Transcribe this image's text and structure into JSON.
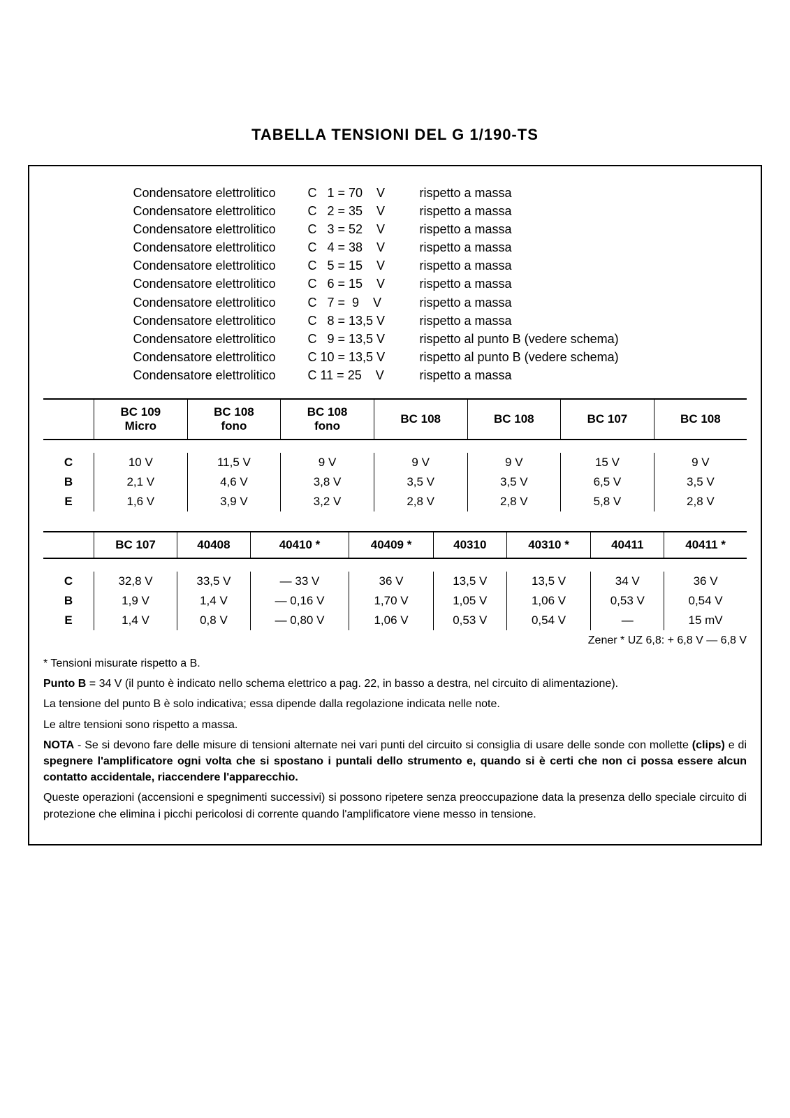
{
  "title": "TABELLA  TENSIONI  DEL  G 1/190-TS",
  "capacitors": [
    {
      "label": "Condensatore  elettrolitico",
      "eq": "C   1 = 70    V",
      "note": "rispetto  a  massa"
    },
    {
      "label": "Condensatore  elettrolitico",
      "eq": "C   2 = 35    V",
      "note": "rispetto  a  massa"
    },
    {
      "label": "Condensatore  elettrolitico",
      "eq": "C   3 = 52    V",
      "note": "rispetto  a  massa"
    },
    {
      "label": "Condensatore  elettrolitico",
      "eq": "C   4 = 38    V",
      "note": "rispetto  a  massa"
    },
    {
      "label": "Condensatore  elettrolitico",
      "eq": "C   5 = 15    V",
      "note": "rispetto  a  massa"
    },
    {
      "label": "Condensatore  elettrolitico",
      "eq": "C   6 = 15    V",
      "note": "rispetto  a  massa"
    },
    {
      "label": "Condensatore  elettrolitico",
      "eq": "C   7 =  9    V",
      "note": "rispetto  a  massa"
    },
    {
      "label": "Condensatore  elettrolitico",
      "eq": "C   8 = 13,5 V",
      "note": "rispetto  a  massa"
    },
    {
      "label": "Condensatore  elettrolitico",
      "eq": "C   9 = 13,5 V",
      "note": "rispetto  al  punto  B (vedere schema)"
    },
    {
      "label": "Condensatore  elettrolitico",
      "eq": "C 10 = 13,5 V",
      "note": "rispetto  al  punto  B (vedere schema)"
    },
    {
      "label": "Condensatore  elettrolitico",
      "eq": "C 11 = 25    V",
      "note": "rispetto  a  massa"
    }
  ],
  "table1": {
    "headers": [
      "",
      "BC 109\nMicro",
      "BC 108\nfono",
      "BC 108\nfono",
      "BC 108",
      "BC 108",
      "BC 107",
      "BC 108"
    ],
    "rows": [
      [
        "C",
        "10    V",
        "11,5 V",
        "9    V",
        "9   V",
        "9   V",
        "15    V",
        "9    V"
      ],
      [
        "B",
        "2,1 V",
        "4,6 V",
        "3,8 V",
        "3,5 V",
        "3,5 V",
        "6,5 V",
        "3,5 V"
      ],
      [
        "E",
        "1,6 V",
        "3,9 V",
        "3,2 V",
        "2,8 V",
        "2,8 V",
        "5,8 V",
        "2,8 V"
      ]
    ]
  },
  "table2": {
    "headers": [
      "",
      "BC 107",
      "40408",
      "40410 *",
      "40409 *",
      "40310",
      "40310 *",
      "40411",
      "40411 *"
    ],
    "rows": [
      [
        "C",
        "32,8 V",
        "33,5 V",
        "— 33      V",
        "36     V",
        "13,5 V",
        "13,5   V",
        "34     V",
        "36     V"
      ],
      [
        "B",
        "1,9 V",
        "1,4 V",
        "—  0,16 V",
        "1,70 V",
        "1,05 V",
        "1,06 V",
        "0,53 V",
        "0,54 V"
      ],
      [
        "E",
        "1,4 V",
        "0,8 V",
        "—  0,80 V",
        "1,06 V",
        "0,53 V",
        "0,54 V",
        "—",
        "15   mV"
      ]
    ]
  },
  "zener": "Zener *  UZ 6,8:  + 6,8 V  — 6,8 V",
  "footnotes": {
    "f1": "*  Tensioni misurate rispetto a B.",
    "f2_a": "Punto  B",
    "f2_b": " = 34 V  (il  punto  è  indicato  nello  schema  elettrico  a  pag.  22,  in  basso  a  destra,  nel  circuito  di alimentazione).",
    "f3": "La tensione del punto B è solo indicativa; essa dipende dalla regolazione indicata nelle note.",
    "f4": "Le altre tensioni sono rispetto a massa.",
    "f5_a": "NOTA",
    "f5_b": " - Se si devono fare delle misure di tensioni alternate nei vari punti del circuito si consiglia di usare delle sonde con mollette ",
    "f5_c": "(clips)",
    "f5_d": " e di ",
    "f5_e": "spegnere l'amplificatore ogni volta che si spostano i puntali dello strumento e, quando si è certi che non ci possa essere alcun contatto accidentale, riaccendere l'apparecchio.",
    "f6": "Queste operazioni (accensioni e spegnimenti successivi) si possono ripetere senza preoccupazione data la presenza dello speciale circuito di protezione che elimina i picchi pericolosi di corrente quando l'amplificatore viene messo in tensione."
  }
}
